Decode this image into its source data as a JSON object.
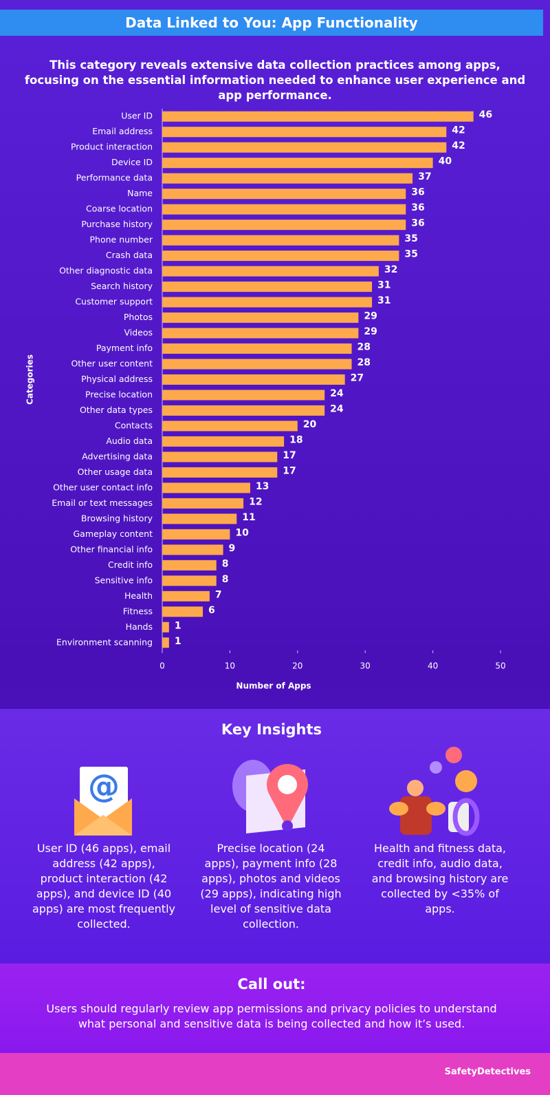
{
  "header": {
    "title": "Data Linked to You: App Functionality",
    "subtitle": "This category reveals extensive data collection practices among apps, focusing on the essential information needed to enhance user experience and app performance."
  },
  "chart_data": {
    "type": "barh",
    "categories": [
      "User ID",
      "Email address",
      "Product interaction",
      "Device ID",
      "Performance data",
      "Name",
      "Coarse location",
      "Purchase history",
      "Phone number",
      "Crash data",
      "Other diagnostic data",
      "Search history",
      "Customer support",
      "Photos",
      "Videos",
      "Payment info",
      "Other user content",
      "Physical address",
      "Precise location",
      "Other data types",
      "Contacts",
      "Audio data",
      "Advertising data",
      "Other usage data",
      "Other user contact info",
      "Email or text messages",
      "Browsing history",
      "Gameplay content",
      "Other financial info",
      "Credit info",
      "Sensitive info",
      "Health",
      "Fitness",
      "Hands",
      "Environment scanning"
    ],
    "values": [
      46,
      42,
      42,
      40,
      37,
      36,
      36,
      36,
      35,
      35,
      32,
      31,
      31,
      29,
      29,
      28,
      28,
      27,
      24,
      24,
      20,
      18,
      17,
      17,
      13,
      12,
      11,
      10,
      9,
      8,
      8,
      7,
      6,
      1,
      1
    ],
    "color": "#ffa94d",
    "xlim": [
      0,
      50
    ],
    "xticks": [
      0,
      10,
      20,
      30,
      40,
      50
    ],
    "x_label": "Number of Apps",
    "y_label": "Categories",
    "grid": false
  },
  "insights": {
    "title": "Key Insights",
    "items": [
      "User ID (46 apps), email address (42 apps), product interaction (42 apps), and device ID (40 apps) are most frequently collected.",
      "Precise location (24 apps), payment info (28 apps), photos and videos (29 apps), indicating high level of sensitive data collection.",
      "Health and fitness data, credit info, audio data, and browsing history are collected by <35% of apps."
    ]
  },
  "callout": {
    "title": "Call out:",
    "text": "Users should regularly review app permissions and privacy policies to understand what personal and sensitive data is being collected and how it’s used."
  },
  "footer": {
    "brand": "SafetyDetectives"
  }
}
